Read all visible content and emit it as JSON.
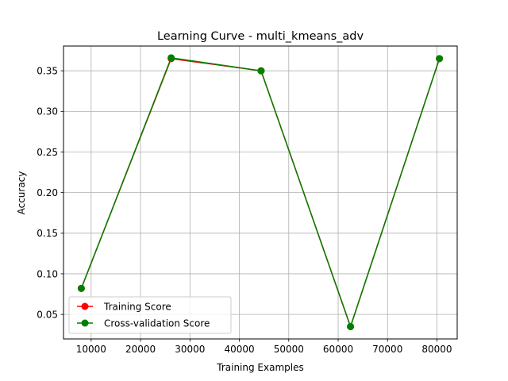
{
  "chart_data": {
    "type": "line",
    "title": "Learning Curve - multi_kmeans_adv",
    "xlabel": "Training Examples",
    "ylabel": "Accuracy",
    "xlim": [
      4400,
      84100
    ],
    "ylim": [
      0.0198,
      0.3805
    ],
    "x_ticks": [
      10000,
      20000,
      30000,
      40000,
      50000,
      60000,
      70000,
      80000
    ],
    "y_ticks": [
      0.05,
      0.1,
      0.15,
      0.2,
      0.25,
      0.3,
      0.35
    ],
    "grid": true,
    "legend_position": "lower left",
    "x": [
      8000,
      26200,
      44400,
      62500,
      80500
    ],
    "series": [
      {
        "name": "Training Score",
        "color": "#ff0000",
        "marker": "circle",
        "values": [
          0.082,
          0.365,
          0.35,
          0.035,
          0.365
        ]
      },
      {
        "name": "Cross-validation Score",
        "color": "#008000",
        "marker": "circle",
        "values": [
          0.082,
          0.366,
          0.35,
          0.035,
          0.365
        ]
      }
    ]
  }
}
